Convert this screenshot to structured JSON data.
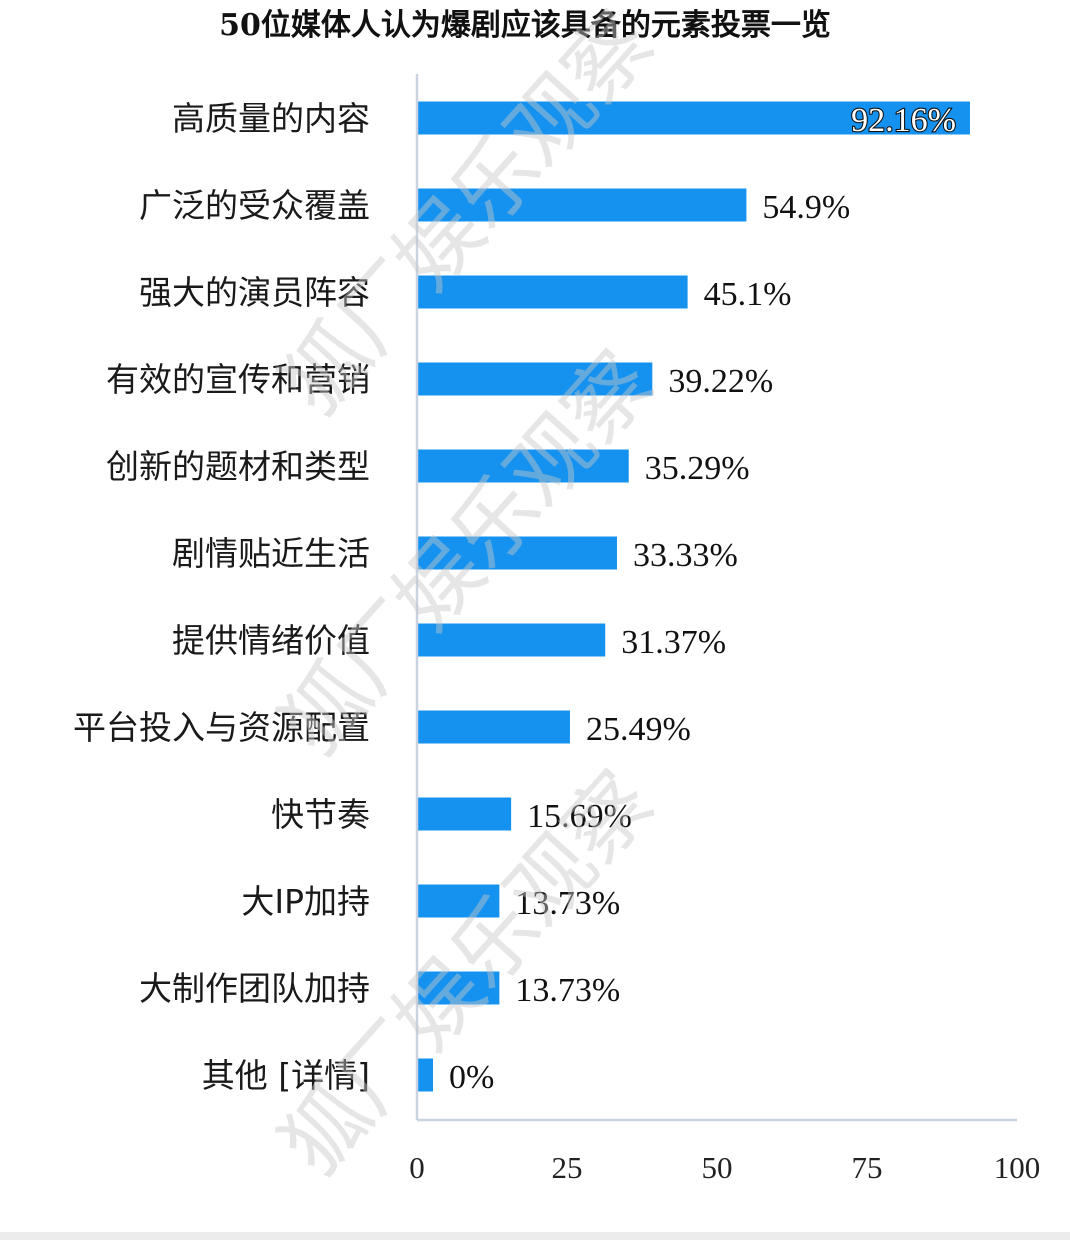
{
  "chart_data": {
    "type": "bar",
    "orientation": "horizontal",
    "title": "50位媒体人认为爆剧应该具备的元素投票一览",
    "categories": [
      "高质量的内容",
      "广泛的受众覆盖",
      "强大的演员阵容",
      "有效的宣传和营销",
      "创新的题材和类型",
      "剧情贴近生活",
      "提供情绪价值",
      "平台投入与资源配置",
      "快节奏",
      "大IP加持",
      "大制作团队加持",
      "其他 [详情]"
    ],
    "values": [
      92.16,
      54.9,
      45.1,
      39.22,
      35.29,
      33.33,
      31.37,
      25.49,
      15.69,
      13.73,
      13.73,
      0
    ],
    "value_labels": [
      "92.16%",
      "54.9%",
      "45.1%",
      "39.22%",
      "35.29%",
      "33.33%",
      "31.37%",
      "25.49%",
      "15.69%",
      "13.73%",
      "13.73%",
      "0%"
    ],
    "xlim": [
      0,
      100
    ],
    "xticks": [
      0,
      25,
      50,
      75,
      100
    ],
    "xtick_labels": [
      "0",
      "25",
      "50",
      "75",
      "100"
    ],
    "xlabel": "",
    "ylabel": "",
    "grid": false,
    "legend": "none",
    "bar_color": "#1592ef",
    "axis_color": "#c9d3e2"
  },
  "watermark": {
    "text": "狐厂娱乐观察"
  }
}
